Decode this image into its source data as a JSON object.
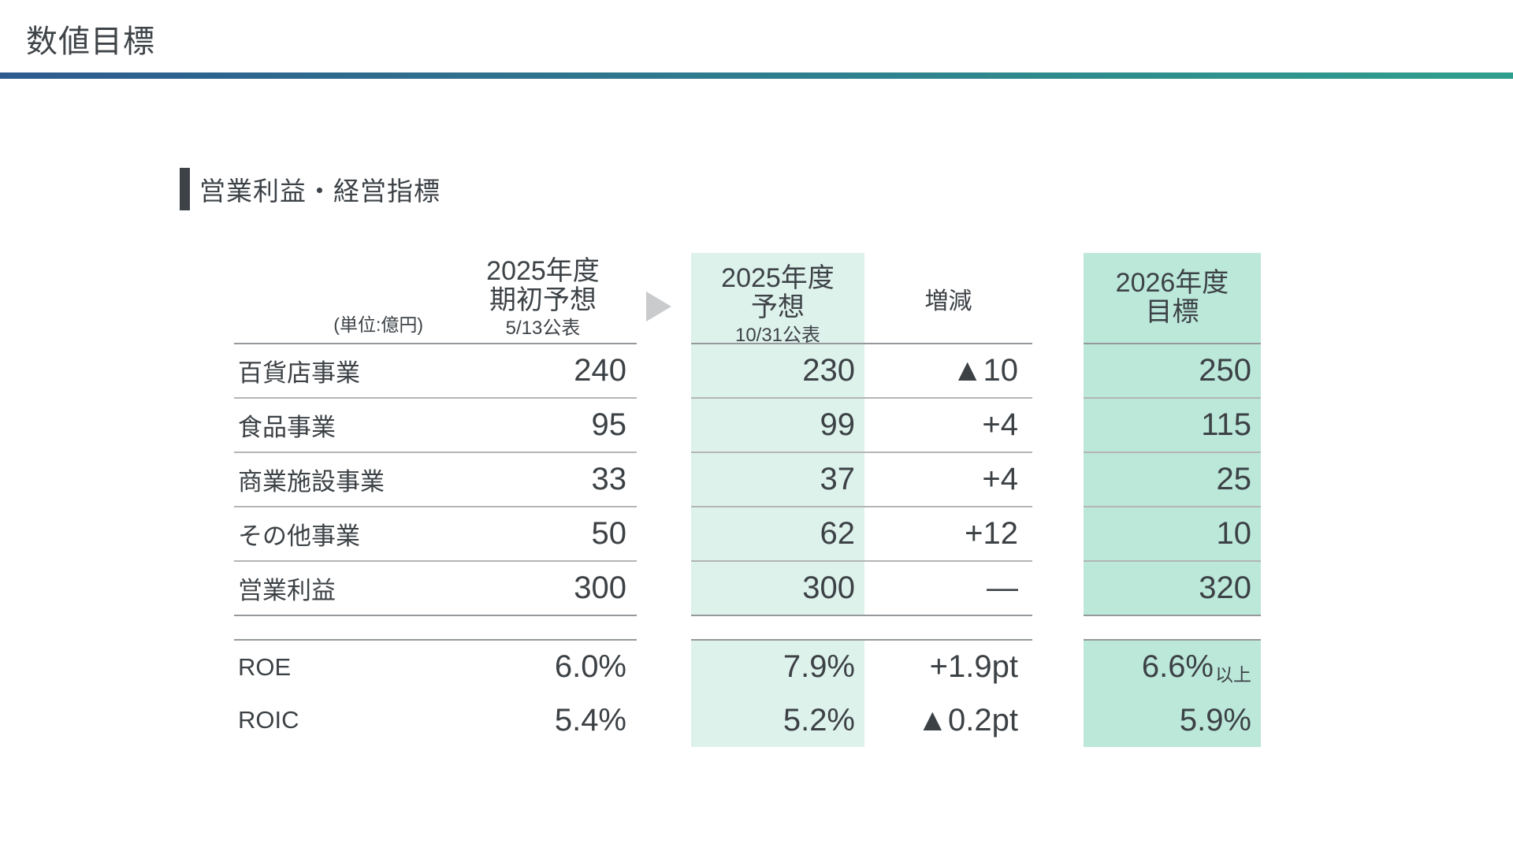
{
  "slide": {
    "title": "数値目標"
  },
  "section": {
    "heading": "営業利益・経営指標"
  },
  "table": {
    "unit_note": "(単位:億円)",
    "columns": {
      "initial_forecast": {
        "line1": "2025年度",
        "line2": "期初予想",
        "line3": "5/13公表"
      },
      "revised_forecast": {
        "line1": "2025年度",
        "line2": "予想",
        "line3": "10/31公表"
      },
      "change": {
        "label": "増減"
      },
      "target_2026": {
        "line1": "2026年度",
        "line2": "目標"
      }
    },
    "rows": [
      {
        "label": "百貨店事業",
        "initial": "240",
        "revised": "230",
        "change": "▲10",
        "target": "250"
      },
      {
        "label": "食品事業",
        "initial": "95",
        "revised": "99",
        "change": "+4",
        "target": "115"
      },
      {
        "label": "商業施設事業",
        "initial": "33",
        "revised": "37",
        "change": "+4",
        "target": "25"
      },
      {
        "label": "その他事業",
        "initial": "50",
        "revised": "62",
        "change": "+12",
        "target": "10"
      },
      {
        "label": "営業利益",
        "initial": "300",
        "revised": "300",
        "change": "—",
        "target": "320"
      }
    ],
    "ratio_rows": [
      {
        "label": "ROE",
        "initial": "6.0%",
        "revised": "7.9%",
        "change": "+1.9pt",
        "target": "6.6%",
        "target_suffix": "以上"
      },
      {
        "label": "ROIC",
        "initial": "5.4%",
        "revised": "5.2%",
        "change": "▲0.2pt",
        "target": "5.9%",
        "target_suffix": ""
      }
    ]
  },
  "colors": {
    "accent_gradient_left": "#2d5b8e",
    "accent_gradient_right": "#2f9f8d",
    "mint_light": "#def2ec",
    "mint_dark": "#bce8da",
    "text": "#3c4145"
  }
}
